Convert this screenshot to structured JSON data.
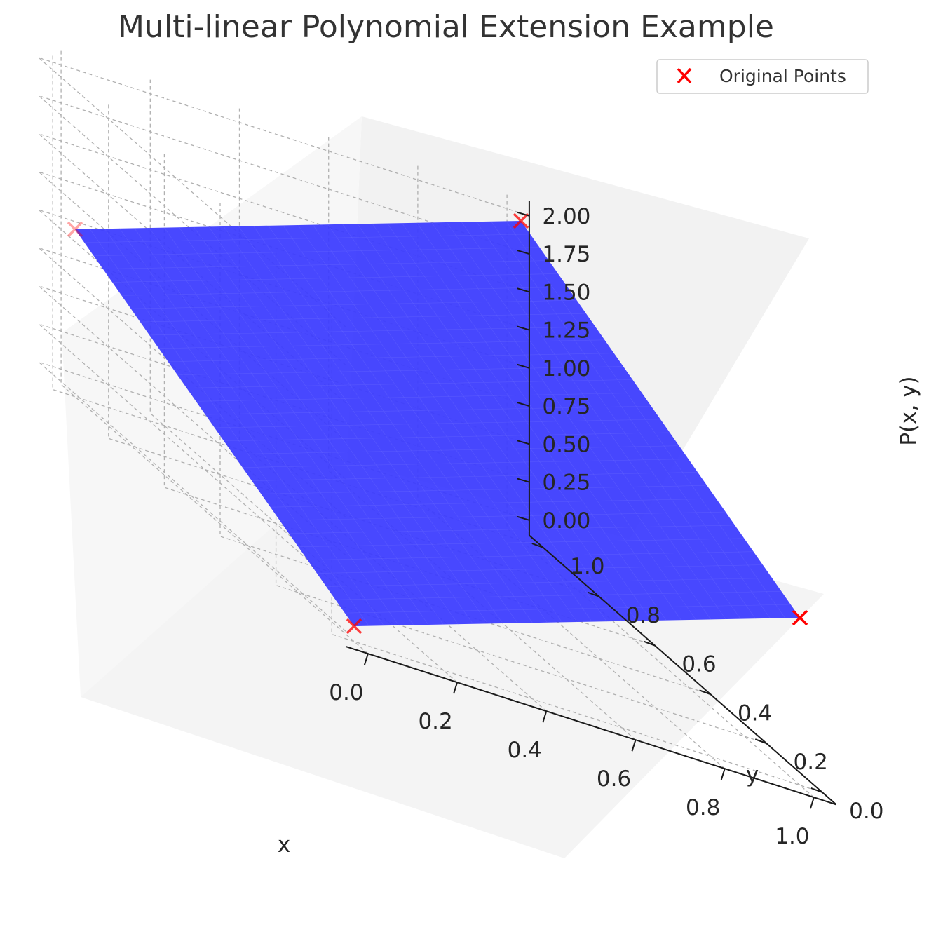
{
  "chart_data": {
    "type": "surface3d",
    "title": "Multi-linear Polynomial Extension Example",
    "xlabel": "x",
    "ylabel": "y",
    "zlabel": "P(x, y)",
    "xlim": [
      0,
      1
    ],
    "ylim": [
      0,
      1
    ],
    "zlim": [
      0,
      2
    ],
    "x_ticks": [
      "0.0",
      "0.2",
      "0.4",
      "0.6",
      "0.8",
      "1.0"
    ],
    "y_ticks": [
      "0.0",
      "0.2",
      "0.4",
      "0.6",
      "0.8",
      "1.0"
    ],
    "z_ticks": [
      "0.00",
      "0.25",
      "0.50",
      "0.75",
      "1.00",
      "1.25",
      "1.50",
      "1.75",
      "2.00"
    ],
    "grid": true,
    "surface": {
      "color": "#3a3aff",
      "corners": [
        {
          "x": 0,
          "y": 0,
          "z": 0
        },
        {
          "x": 1,
          "y": 0,
          "z": 1
        },
        {
          "x": 0,
          "y": 1,
          "z": 1
        },
        {
          "x": 1,
          "y": 1,
          "z": 2
        }
      ]
    },
    "series": [
      {
        "name": "Original Points",
        "marker": "x",
        "color": "#ff0000",
        "points": [
          {
            "x": 0,
            "y": 0,
            "z": 0
          },
          {
            "x": 1,
            "y": 0,
            "z": 1
          },
          {
            "x": 0,
            "y": 1,
            "z": 1
          },
          {
            "x": 1,
            "y": 1,
            "z": 2
          }
        ]
      }
    ],
    "legend_position": "top-right"
  }
}
